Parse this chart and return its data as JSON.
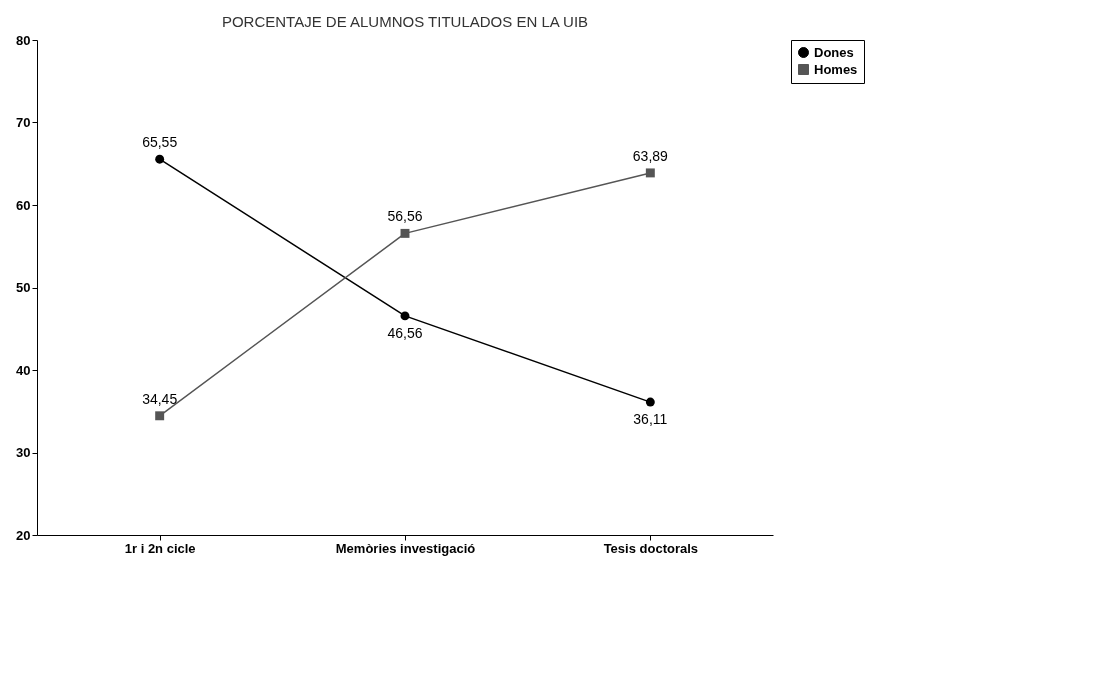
{
  "chart_data": {
    "type": "line",
    "title": "PORCENTAJE DE ALUMNOS TITULADOS EN LA UIB",
    "categories": [
      "1r i 2n cicle",
      "Memòries investigació",
      "Tesis doctorals"
    ],
    "series": [
      {
        "name": "Dones",
        "color": "#000000",
        "marker": "circle",
        "values": [
          65.55,
          46.56,
          36.11
        ],
        "value_labels": [
          "65,55",
          "46,56",
          "36,11"
        ]
      },
      {
        "name": "Homes",
        "color": "#555555",
        "marker": "square",
        "values": [
          34.45,
          56.56,
          63.89
        ],
        "value_labels": [
          "34,45",
          "56,56",
          "63,89"
        ]
      }
    ],
    "ylim": [
      20,
      80
    ],
    "yticks": [
      20,
      30,
      40,
      50,
      60,
      70,
      80
    ],
    "grid": false,
    "legend": "right",
    "line_style": "solid"
  }
}
